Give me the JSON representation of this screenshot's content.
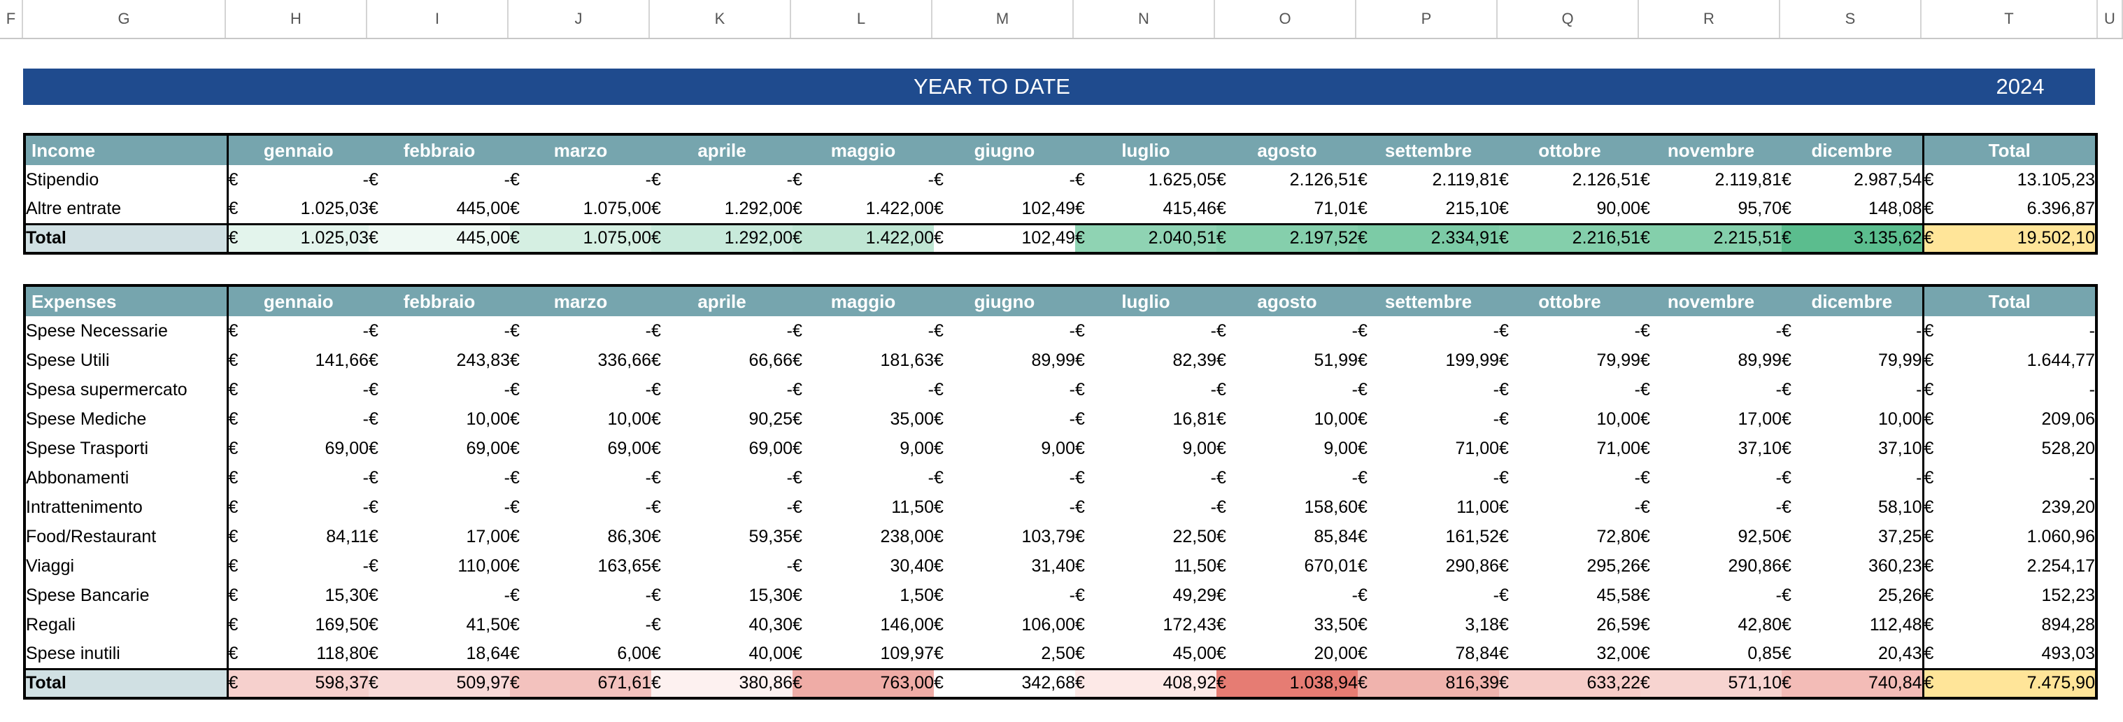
{
  "column_headers": [
    "F",
    "G",
    "H",
    "I",
    "J",
    "K",
    "L",
    "M",
    "N",
    "O",
    "P",
    "Q",
    "R",
    "S",
    "T",
    "U"
  ],
  "banner": {
    "title": "YEAR TO DATE",
    "year": "2024",
    "color": "#1f4b8e"
  },
  "currency": "€",
  "months": [
    "gennaio",
    "febbraio",
    "marzo",
    "aprile",
    "maggio",
    "giugno",
    "luglio",
    "agosto",
    "settembre",
    "ottobre",
    "novembre",
    "dicembre"
  ],
  "total_label": "Total",
  "income": {
    "header": "Income",
    "rows": [
      {
        "label": "Stipendio",
        "values": [
          "-",
          "-",
          "-",
          "-",
          "-",
          "-",
          "1.625,05",
          "2.126,51",
          "2.119,81",
          "2.126,51",
          "2.119,81",
          "2.987,54"
        ],
        "total": "13.105,23"
      },
      {
        "label": "Altre entrate",
        "values": [
          "1.025,03",
          "445,00",
          "1.075,00",
          "1.292,00",
          "1.422,00",
          "102,49",
          "415,46",
          "71,01",
          "215,10",
          "90,00",
          "95,70",
          "148,08"
        ],
        "total": "6.396,87"
      }
    ],
    "totals": {
      "label": "Total",
      "values": [
        "1.025,03",
        "445,00",
        "1.075,00",
        "1.292,00",
        "1.422,00",
        "102,49",
        "2.040,51",
        "2.197,52",
        "2.334,91",
        "2.216,51",
        "2.215,51",
        "3.135,62"
      ],
      "total": "19.502,10"
    },
    "total_colors": [
      "#e3f4ec",
      "#eef9f3",
      "#d5efe2",
      "#c8eadb",
      "#bfe6d3",
      "#ffffff",
      "#8fd3b3",
      "#85cfac",
      "#7ccba6",
      "#84cfab",
      "#84cfab",
      "#5bbd8e"
    ]
  },
  "expenses": {
    "header": "Expenses",
    "rows": [
      {
        "label": "Spese Necessarie",
        "values": [
          "-",
          "-",
          "-",
          "-",
          "-",
          "-",
          "-",
          "-",
          "-",
          "-",
          "-",
          "-"
        ],
        "total": "-"
      },
      {
        "label": "Spese Utili",
        "values": [
          "141,66",
          "243,83",
          "336,66",
          "66,66",
          "181,63",
          "89,99",
          "82,39",
          "51,99",
          "199,99",
          "79,99",
          "89,99",
          "79,99"
        ],
        "total": "1.644,77"
      },
      {
        "label": "Spesa supermercato",
        "values": [
          "-",
          "-",
          "-",
          "-",
          "-",
          "-",
          "-",
          "-",
          "-",
          "-",
          "-",
          "-"
        ],
        "total": "-"
      },
      {
        "label": "Spese Mediche",
        "values": [
          "-",
          "10,00",
          "10,00",
          "90,25",
          "35,00",
          "-",
          "16,81",
          "10,00",
          "-",
          "10,00",
          "17,00",
          "10,00"
        ],
        "total": "209,06"
      },
      {
        "label": "Spese Trasporti",
        "values": [
          "69,00",
          "69,00",
          "69,00",
          "69,00",
          "9,00",
          "9,00",
          "9,00",
          "9,00",
          "71,00",
          "71,00",
          "37,10",
          "37,10"
        ],
        "total": "528,20"
      },
      {
        "label": "Abbonamenti",
        "values": [
          "-",
          "-",
          "-",
          "-",
          "-",
          "-",
          "-",
          "-",
          "-",
          "-",
          "-",
          "-"
        ],
        "total": "-"
      },
      {
        "label": "Intrattenimento",
        "values": [
          "-",
          "-",
          "-",
          "-",
          "11,50",
          "-",
          "-",
          "158,60",
          "11,00",
          "-",
          "-",
          "58,10"
        ],
        "total": "239,20"
      },
      {
        "label": "Food/Restaurant",
        "values": [
          "84,11",
          "17,00",
          "86,30",
          "59,35",
          "238,00",
          "103,79",
          "22,50",
          "85,84",
          "161,52",
          "72,80",
          "92,50",
          "37,25"
        ],
        "total": "1.060,96"
      },
      {
        "label": "Viaggi",
        "values": [
          "-",
          "110,00",
          "163,65",
          "-",
          "30,40",
          "31,40",
          "11,50",
          "670,01",
          "290,86",
          "295,26",
          "290,86",
          "360,23"
        ],
        "total": "2.254,17"
      },
      {
        "label": "Spese Bancarie",
        "values": [
          "15,30",
          "-",
          "-",
          "15,30",
          "1,50",
          "-",
          "49,29",
          "-",
          "-",
          "45,58",
          "-",
          "25,26"
        ],
        "total": "152,23"
      },
      {
        "label": "Regali",
        "values": [
          "169,50",
          "41,50",
          "-",
          "40,30",
          "146,00",
          "106,00",
          "172,43",
          "33,50",
          "3,18",
          "26,59",
          "42,80",
          "112,48"
        ],
        "total": "894,28"
      },
      {
        "label": "Spese inutili",
        "values": [
          "118,80",
          "18,64",
          "6,00",
          "40,00",
          "109,97",
          "2,50",
          "45,00",
          "20,00",
          "78,84",
          "32,00",
          "0,85",
          "20,43"
        ],
        "total": "493,03"
      }
    ],
    "totals": {
      "label": "Total",
      "values": [
        "598,37",
        "509,97",
        "671,61",
        "380,86",
        "763,00",
        "342,68",
        "408,92",
        "1.038,94",
        "816,39",
        "633,22",
        "571,10",
        "740,84"
      ],
      "total": "7.475,90"
    },
    "total_colors": [
      "#f6d0cd",
      "#f8dad8",
      "#f3c2be",
      "#fdf1f0",
      "#efaca6",
      "#ffffff",
      "#fde9e7",
      "#e67c73",
      "#f0b3ad",
      "#f6ccc8",
      "#f7d4d0",
      "#f3bcb7"
    ]
  },
  "colors": {
    "header_bg": "#76a5ae",
    "label_total_bg": "#d0e0e3",
    "grand_total_bg": "#ffe599"
  }
}
